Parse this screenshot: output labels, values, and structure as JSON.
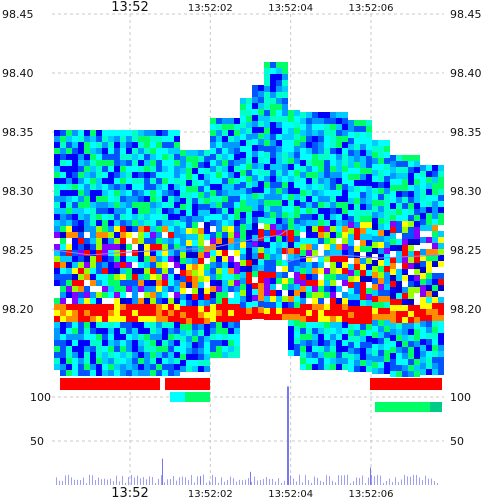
{
  "chart_data": {
    "type": "heatmap",
    "title": "",
    "xlabel": "",
    "ylabel": "",
    "grid": true,
    "legend": "none",
    "x_time_labels": [
      "13:52",
      "13:52:02",
      "13:52:04",
      "13:52:06"
    ],
    "x_time_seconds": [
      0,
      2,
      4,
      6
    ],
    "xlim": [
      -0.6,
      8.0
    ],
    "price_axis": {
      "ticks": [
        "98.45",
        "98.40",
        "98.35",
        "98.30",
        "98.25",
        "98.20"
      ],
      "ylim": [
        98.163,
        98.45
      ]
    },
    "volume_axis": {
      "ticks": [
        "100",
        "50"
      ],
      "ylim": [
        0,
        112
      ]
    },
    "heatmap_colors": [
      "#ff0000",
      "#ff8c00",
      "#ffff00",
      "#99ff00",
      "#00ff66",
      "#00ffcc",
      "#00ffff",
      "#00ccff",
      "#0099ff",
      "#0055ff",
      "#0000ff",
      "#0000cc",
      "#8800ff",
      "#ffffff"
    ],
    "price_line_color": "#8888ff",
    "volume_bar_color": "#7777ee",
    "grid_color": "#c8c8c8",
    "volume_spike": {
      "time_seconds": 3.8,
      "value": 112
    }
  }
}
